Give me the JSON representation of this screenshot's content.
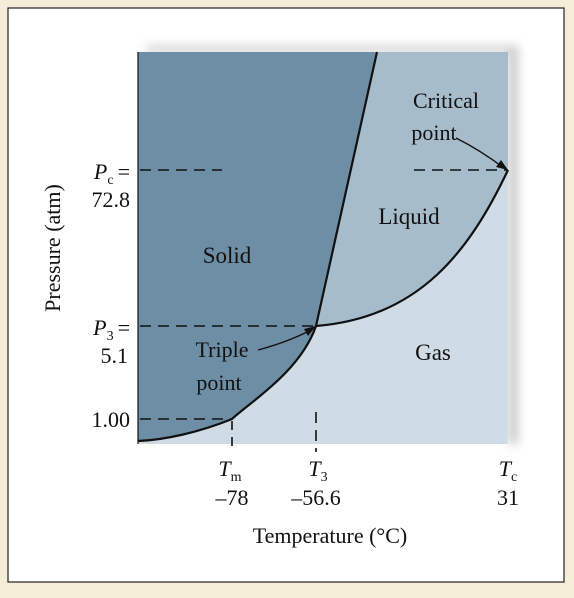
{
  "diagram": {
    "title": "",
    "xlabel": "Temperature (°C)",
    "ylabel": "Pressure (atm)",
    "regions": {
      "solid": "Solid",
      "liquid": "Liquid",
      "gas": "Gas"
    },
    "annotations": {
      "critical_line1": "Critical",
      "critical_line2": "point",
      "triple_line1": "Triple",
      "triple_line2": "point"
    },
    "y_ticks": {
      "pc_symbol": "P",
      "pc_sub": "c",
      "pc_eq": "=",
      "pc_value": "72.8",
      "p3_symbol": "P",
      "p3_sub": "3",
      "p3_eq": "=",
      "p3_value": "5.1",
      "p1_value": "1.00"
    },
    "x_ticks": {
      "tm_symbol": "T",
      "tm_sub": "m",
      "tm_value": "–78",
      "t3_symbol": "T",
      "t3_sub": "3",
      "t3_value": "–56.6",
      "tc_symbol": "T",
      "tc_sub": "c",
      "tc_value": "31"
    },
    "colors": {
      "background": "#f6edd8",
      "panel": "#ffffff",
      "solid": "#6d8ea5",
      "liquid": "#a7bccb",
      "gas": "#cfdce5",
      "line": "#111111"
    }
  }
}
